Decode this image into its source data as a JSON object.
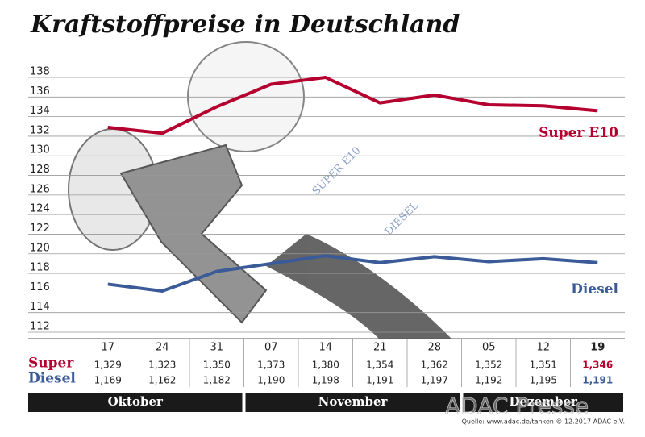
{
  "chart_data": {
    "type": "line",
    "title": "Kraftstoffpreise in Deutschland",
    "categories": [
      "17",
      "24",
      "31",
      "07",
      "14",
      "21",
      "28",
      "05",
      "12",
      "19"
    ],
    "months": [
      "Oktober",
      "November",
      "Dezember"
    ],
    "series": [
      {
        "name": "Super E10",
        "row_label": "Super",
        "color": "#b5002f",
        "values": [
          132.9,
          132.3,
          135.0,
          137.3,
          138.0,
          135.4,
          136.2,
          135.2,
          135.1,
          134.6
        ],
        "value_labels": [
          "1,329",
          "1,323",
          "1,350",
          "1,373",
          "1,380",
          "1,354",
          "1,362",
          "1,352",
          "1,351",
          "1,346"
        ]
      },
      {
        "name": "Diesel",
        "row_label": "Diesel",
        "color": "#3b5b98",
        "values": [
          116.9,
          116.2,
          118.2,
          119.0,
          119.8,
          119.1,
          119.7,
          119.2,
          119.5,
          119.1
        ],
        "value_labels": [
          "1,169",
          "1,162",
          "1,182",
          "1,190",
          "1,198",
          "1,191",
          "1,197",
          "1,192",
          "1,195",
          "1,191"
        ]
      }
    ],
    "ylim": [
      112,
      138
    ],
    "yticks": [
      112,
      114,
      116,
      118,
      120,
      122,
      124,
      126,
      128,
      130,
      132,
      134,
      136,
      138
    ],
    "grid": true,
    "illustration_labels": [
      "SUPER E10",
      "DIESEL"
    ],
    "watermark": "ADAC Presse",
    "source": "Quelle: www.adac.de/tanken   © 12.2017  ADAC e.V."
  }
}
